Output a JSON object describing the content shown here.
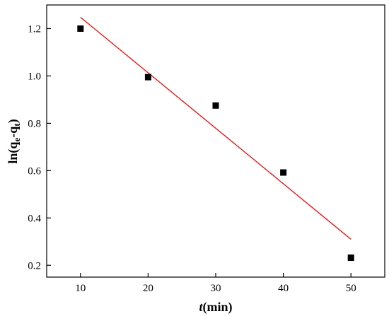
{
  "chart_data": {
    "type": "scatter",
    "xlabel": {
      "italic": "t",
      "rest": "(min)"
    },
    "ylabel": {
      "base": "ln(q",
      "sub1": "e",
      "mid": "-q",
      "sub2": "t",
      "end": ")"
    },
    "xlim": [
      5,
      55
    ],
    "ylim": [
      0.15,
      1.3
    ],
    "xticks": [
      10,
      20,
      30,
      40,
      50
    ],
    "xtick_labels": [
      "10",
      "20",
      "30",
      "40",
      "50"
    ],
    "yticks": [
      0.2,
      0.4,
      0.6,
      0.8,
      1.0,
      1.2
    ],
    "ytick_labels": [
      "0.2",
      "0.4",
      "0.6",
      "0.8",
      "1.0",
      "1.2"
    ],
    "series": [
      {
        "kind": "points",
        "marker": "square",
        "color": "#000000",
        "x": [
          10,
          20,
          30,
          40,
          50
        ],
        "y": [
          1.2,
          0.995,
          0.875,
          0.592,
          0.232
        ]
      },
      {
        "kind": "fit-line",
        "color": "#e8191a",
        "x": [
          10,
          50
        ],
        "y": [
          1.248,
          0.31
        ]
      }
    ],
    "grid": false,
    "legend": "none"
  }
}
